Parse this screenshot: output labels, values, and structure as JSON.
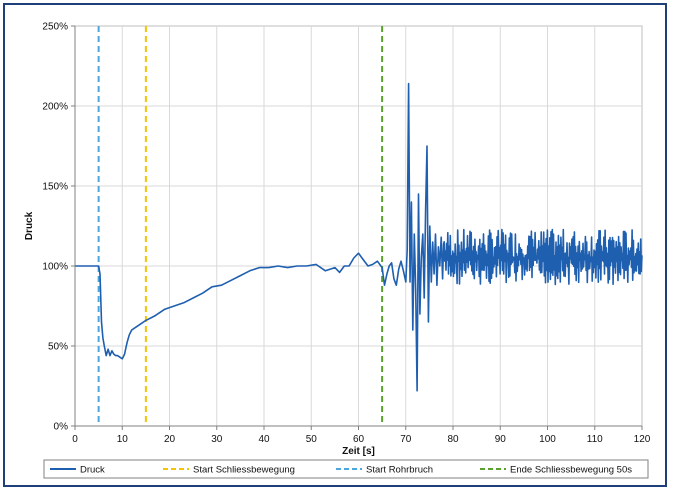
{
  "chart_data": {
    "type": "line",
    "title": "",
    "xlabel": "Zeit [s]",
    "ylabel": "Druck",
    "xlim": [
      0,
      120
    ],
    "ylim": [
      0,
      250
    ],
    "x_ticks": [
      0,
      10,
      20,
      30,
      40,
      50,
      60,
      70,
      80,
      90,
      100,
      110,
      120
    ],
    "y_ticks": [
      0,
      50,
      100,
      150,
      200,
      250
    ],
    "y_tick_labels": [
      "0%",
      "50%",
      "100%",
      "150%",
      "200%",
      "250%"
    ],
    "grid": "both",
    "legend_position": "bottom",
    "colors": {
      "druck": "#1f5fb0",
      "start_schliessbewegung": "#f2c500",
      "start_rohrbruch": "#4aa6dd",
      "ende_schliessbewegung": "#5aa02c",
      "grid": "#d9d9d9",
      "frame": "#1f3f7a"
    },
    "series": [
      {
        "name": "Druck",
        "x": [
          0,
          5,
          5.3,
          5.6,
          5.9,
          6.2,
          6.6,
          7,
          7.4,
          7.8,
          8.2,
          8.6,
          9,
          9.5,
          10,
          10.5,
          11,
          11.5,
          12,
          13,
          14,
          15,
          17,
          19,
          21,
          23,
          25,
          27,
          29,
          31,
          33,
          35,
          37,
          39,
          41,
          43,
          45,
          47,
          49,
          51,
          53,
          55,
          56,
          57,
          58,
          59,
          60,
          61,
          62,
          63,
          64,
          65,
          65.5,
          66,
          66.5,
          67,
          67.5,
          68,
          68.5,
          69,
          69.5,
          70,
          70.3,
          70.6,
          70.9,
          71.2,
          71.5,
          71.8,
          72.1,
          72.4,
          72.7,
          73,
          73.3,
          73.6,
          73.9,
          74.2,
          74.5,
          74.8,
          75.1,
          75.4,
          75.7,
          76,
          76.3,
          76.6,
          76.9,
          77.2,
          77.5,
          77.8
        ],
        "y": [
          100,
          100,
          95,
          65,
          55,
          50,
          44,
          48,
          44,
          47,
          45,
          44,
          44,
          43,
          42,
          45,
          52,
          57,
          60,
          62,
          64,
          66,
          69,
          73,
          75,
          77,
          80,
          83,
          87,
          88,
          91,
          94,
          97,
          99,
          99,
          100,
          99,
          100,
          100,
          101,
          97,
          99,
          96,
          100,
          100,
          105,
          108,
          104,
          100,
          101,
          103,
          99,
          88,
          95,
          100,
          102,
          92,
          88,
          98,
          103,
          97,
          90,
          110,
          214,
          90,
          140,
          60,
          120,
          85,
          22,
          145,
          70,
          105,
          120,
          80,
          135,
          175,
          65,
          125,
          90,
          115,
          95,
          120,
          88,
          112,
          100,
          118,
          92
        ],
        "oscillation": {
          "x_from": 78,
          "x_to": 120,
          "center": 105,
          "min": 88,
          "max": 123
        }
      }
    ],
    "vertical_markers": [
      {
        "name": "Start Rohrbruch",
        "x": 5
      },
      {
        "name": "Start Schliessbewegung",
        "x": 15
      },
      {
        "name": "Ende Schliessbewegung 50s",
        "x": 65
      }
    ],
    "legend": [
      {
        "label": "Druck",
        "style": "solid",
        "color_key": "druck"
      },
      {
        "label": "Start Schliessbewegung",
        "style": "dashed",
        "color_key": "start_schliessbewegung"
      },
      {
        "label": "Start Rohrbruch",
        "style": "dashed",
        "color_key": "start_rohrbruch"
      },
      {
        "label": "Ende Schliessbewegung 50s",
        "style": "dashed",
        "color_key": "ende_schliessbewegung"
      }
    ]
  }
}
